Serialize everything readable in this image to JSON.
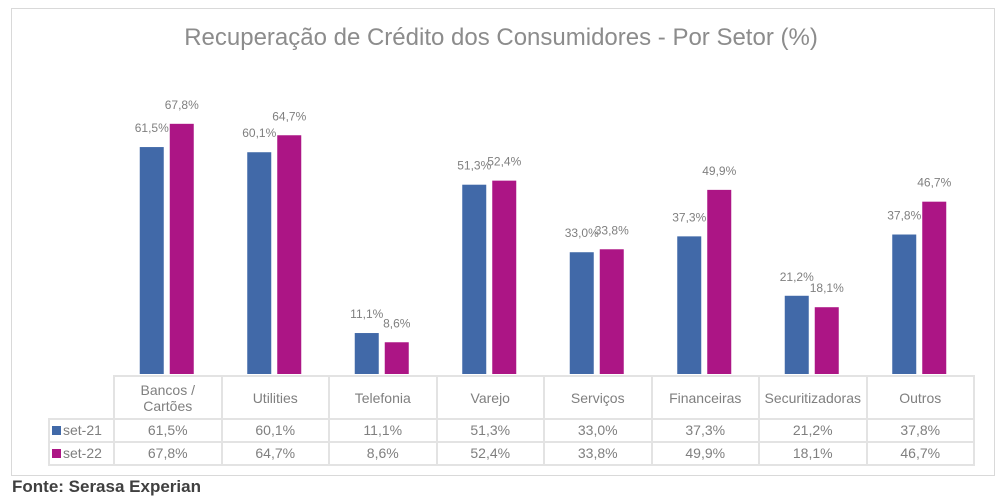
{
  "chart_data": {
    "type": "bar",
    "title": "Recuperação de Crédito dos Consumidores - Por Setor (%)",
    "xlabel": "",
    "ylabel": "",
    "ylim": [
      0,
      70
    ],
    "grid": false,
    "legend_placement": "data-table-left",
    "categories": [
      "Bancos / Cartões",
      "Utilities",
      "Telefonia",
      "Varejo",
      "Serviços",
      "Financeiras",
      "Securitizadoras",
      "Outros"
    ],
    "series": [
      {
        "name": "set-21",
        "color": "#4169A8",
        "values": [
          61.5,
          60.1,
          11.1,
          51.3,
          33.0,
          37.3,
          21.2,
          37.8
        ],
        "labels": [
          "61,5%",
          "60,1%",
          "11,1%",
          "51,3%",
          "33,0%",
          "37,3%",
          "21,2%",
          "37,8%"
        ]
      },
      {
        "name": "set-22",
        "color": "#AC1585",
        "values": [
          67.8,
          64.7,
          8.6,
          52.4,
          33.8,
          49.9,
          18.1,
          46.7
        ],
        "labels": [
          "67,8%",
          "64,7%",
          "8,6%",
          "52,4%",
          "33,8%",
          "49,9%",
          "18,1%",
          "46,7%"
        ]
      }
    ]
  },
  "table": {
    "header": [
      "Bancos /\nCartões",
      "Utilities",
      "Telefonia",
      "Varejo",
      "Serviços",
      "Financeiras",
      "Securitizadoras",
      "Outros"
    ]
  },
  "source": "Fonte: Serasa Experian"
}
